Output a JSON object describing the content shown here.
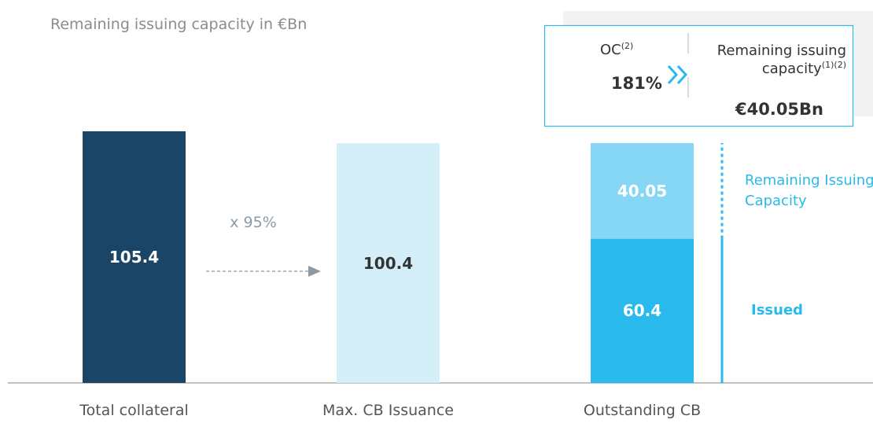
{
  "chart_data": {
    "type": "bar",
    "subtitle": "Remaining issuing capacity in €Bn",
    "categories": [
      "Total collateral",
      "Max. CB Issuance",
      "Outstanding CB"
    ],
    "values": [
      105.4,
      100.4,
      null
    ],
    "colors": [
      "#1b4567",
      "#d5eff9",
      null
    ],
    "series": [
      {
        "name": "Issued",
        "color": "#29b9ed",
        "values": [
          null,
          null,
          60.4
        ]
      },
      {
        "name": "Remaining Issuing Capacity",
        "color": "#86d6f6",
        "values": [
          null,
          null,
          40.05
        ]
      }
    ],
    "annotations": {
      "ratio": "x 95%",
      "oc_label": "OC",
      "oc_note": "(2)",
      "oc_value": "181%",
      "capacity_label": "Remaining issuing capacity",
      "capacity_note": "(1)(2)",
      "capacity_value": "€40.05Bn"
    }
  }
}
